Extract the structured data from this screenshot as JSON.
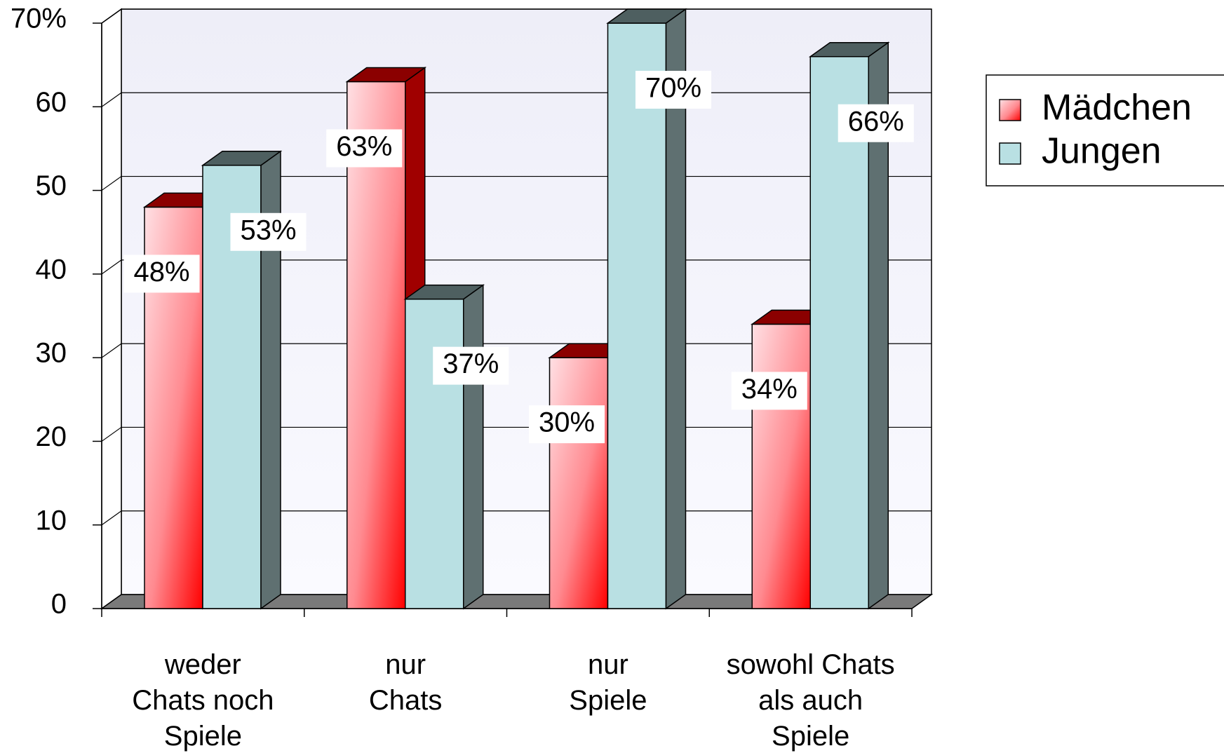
{
  "chart_data": {
    "type": "bar3d",
    "categories": [
      "weder\nChats noch\nSpiele",
      "nur\nChats",
      "nur\nSpiele",
      "sowohl Chats\nals auch\nSpiele"
    ],
    "series": [
      {
        "name": "Mädchen",
        "color": "#ff0000",
        "values": [
          48,
          63,
          30,
          34
        ],
        "value_labels": [
          "48%",
          "63%",
          "30%",
          "34%"
        ]
      },
      {
        "name": "Jungen",
        "color": "#b9e0e3",
        "values": [
          53,
          37,
          70,
          66
        ],
        "value_labels": [
          "53%",
          "37%",
          "70%",
          "66%"
        ]
      }
    ],
    "ylim": [
      0,
      70
    ],
    "yticks": [
      0,
      10,
      20,
      30,
      40,
      50,
      60,
      {
        "value": 70,
        "label": "70%"
      }
    ],
    "grid": true,
    "legend": "right"
  }
}
